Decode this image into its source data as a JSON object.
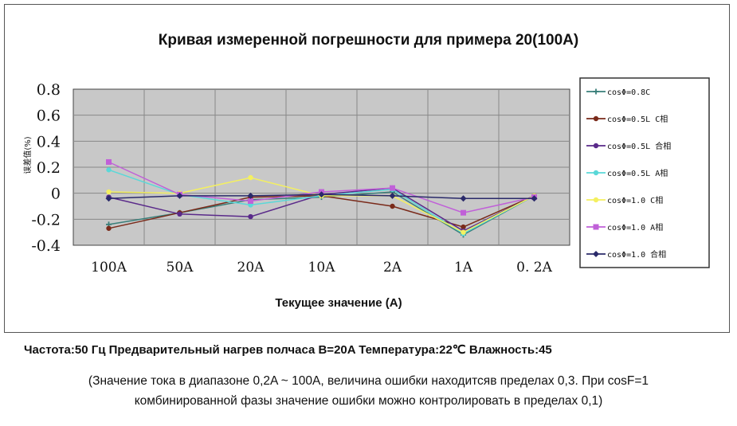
{
  "page": {
    "footer_line1": "Частота:50 Гц Предварительный нагрев полчаса B=20A Температура:22℃ Влажность:45",
    "footer_line2": "(Значение тока в диапазоне 0,2A ~ 100A, величина ошибки находитсяв пределах 0,3. При cosF=1",
    "footer_line3": "комбинированной фазы значение ошибки можно контролировать в пределах 0,1)"
  },
  "chart_data": {
    "type": "line",
    "title": "Кривая измеренной погрешности для примера 20(100A)",
    "xlabel": "Текущее значение (A)",
    "ylabel": "误差值(%)",
    "categories": [
      "100A",
      "50A",
      "20A",
      "10A",
      "2A",
      "1A",
      "0. 2A"
    ],
    "ylim": [
      -0.4,
      0.8
    ],
    "yticks": [
      -0.4,
      -0.2,
      0,
      0.2,
      0.4,
      0.6,
      0.8
    ],
    "ytick_labels": [
      "-0.4",
      "-0.2",
      "0",
      "0.2",
      "0.4",
      "0.6",
      "0.8"
    ],
    "grid": true,
    "legend_position": "right",
    "series": [
      {
        "name": "cosΦ=0.8C",
        "color": "#3a7f7a",
        "marker": "plus",
        "values": [
          -0.24,
          -0.15,
          -0.05,
          -0.03,
          0.01,
          -0.32,
          -0.02
        ]
      },
      {
        "name": "cosΦ=0.5L  C相",
        "color": "#7a2a1a",
        "marker": "circle",
        "values": [
          -0.27,
          -0.15,
          -0.03,
          -0.02,
          -0.1,
          -0.26,
          -0.02
        ]
      },
      {
        "name": "cosΦ=0.5L  合相",
        "color": "#5a2a8a",
        "marker": "circle",
        "values": [
          -0.03,
          -0.16,
          -0.18,
          -0.01,
          0.04,
          -0.29,
          -0.02
        ]
      },
      {
        "name": "cosΦ=0.5L  A相",
        "color": "#5ad8d8",
        "marker": "circle",
        "values": [
          0.18,
          -0.01,
          -0.09,
          -0.02,
          0.03,
          -0.31,
          -0.02
        ]
      },
      {
        "name": "cosΦ=1.0 C相",
        "color": "#f4f060",
        "marker": "circle",
        "values": [
          0.01,
          0.0,
          0.12,
          -0.02,
          -0.02,
          -0.3,
          -0.02
        ]
      },
      {
        "name": "cosΦ=1.0 A相",
        "color": "#c060d8",
        "marker": "square",
        "values": [
          0.24,
          -0.01,
          -0.06,
          0.01,
          0.04,
          -0.15,
          -0.03
        ]
      },
      {
        "name": "cosΦ=1.0  合相",
        "color": "#2a2a6a",
        "marker": "diamond",
        "values": [
          -0.04,
          -0.02,
          -0.02,
          -0.01,
          -0.02,
          -0.04,
          -0.04
        ]
      }
    ]
  }
}
